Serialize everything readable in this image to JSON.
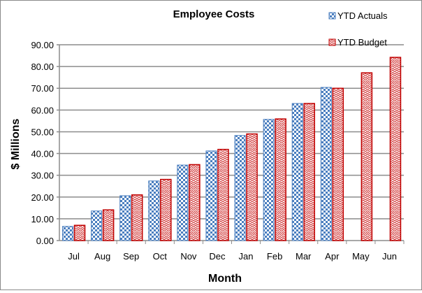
{
  "chart_data": {
    "type": "bar",
    "title": "Employee Costs",
    "xlabel": "Month",
    "ylabel": "$ Millions",
    "ylim": [
      0,
      90
    ],
    "yticks": [
      "0.00",
      "10.00",
      "20.00",
      "30.00",
      "40.00",
      "50.00",
      "60.00",
      "70.00",
      "80.00",
      "90.00"
    ],
    "grid": true,
    "legend_position": "top-right",
    "categories": [
      "Jul",
      "Aug",
      "Sep",
      "Oct",
      "Nov",
      "Dec",
      "Jan",
      "Feb",
      "Mar",
      "Apr",
      "May",
      "Jun"
    ],
    "series": [
      {
        "name": "YTD Actuals",
        "color": "#4a7ebf",
        "values": [
          6.5,
          13.6,
          20.6,
          27.4,
          34.7,
          41.2,
          48.3,
          55.7,
          63.0,
          70.4,
          null,
          null
        ]
      },
      {
        "name": "YTD Budget",
        "color": "#c00000",
        "values": [
          7.0,
          14.1,
          21.0,
          28.1,
          34.9,
          41.9,
          49.0,
          55.9,
          63.0,
          70.0,
          77.1,
          84.2
        ]
      }
    ]
  }
}
